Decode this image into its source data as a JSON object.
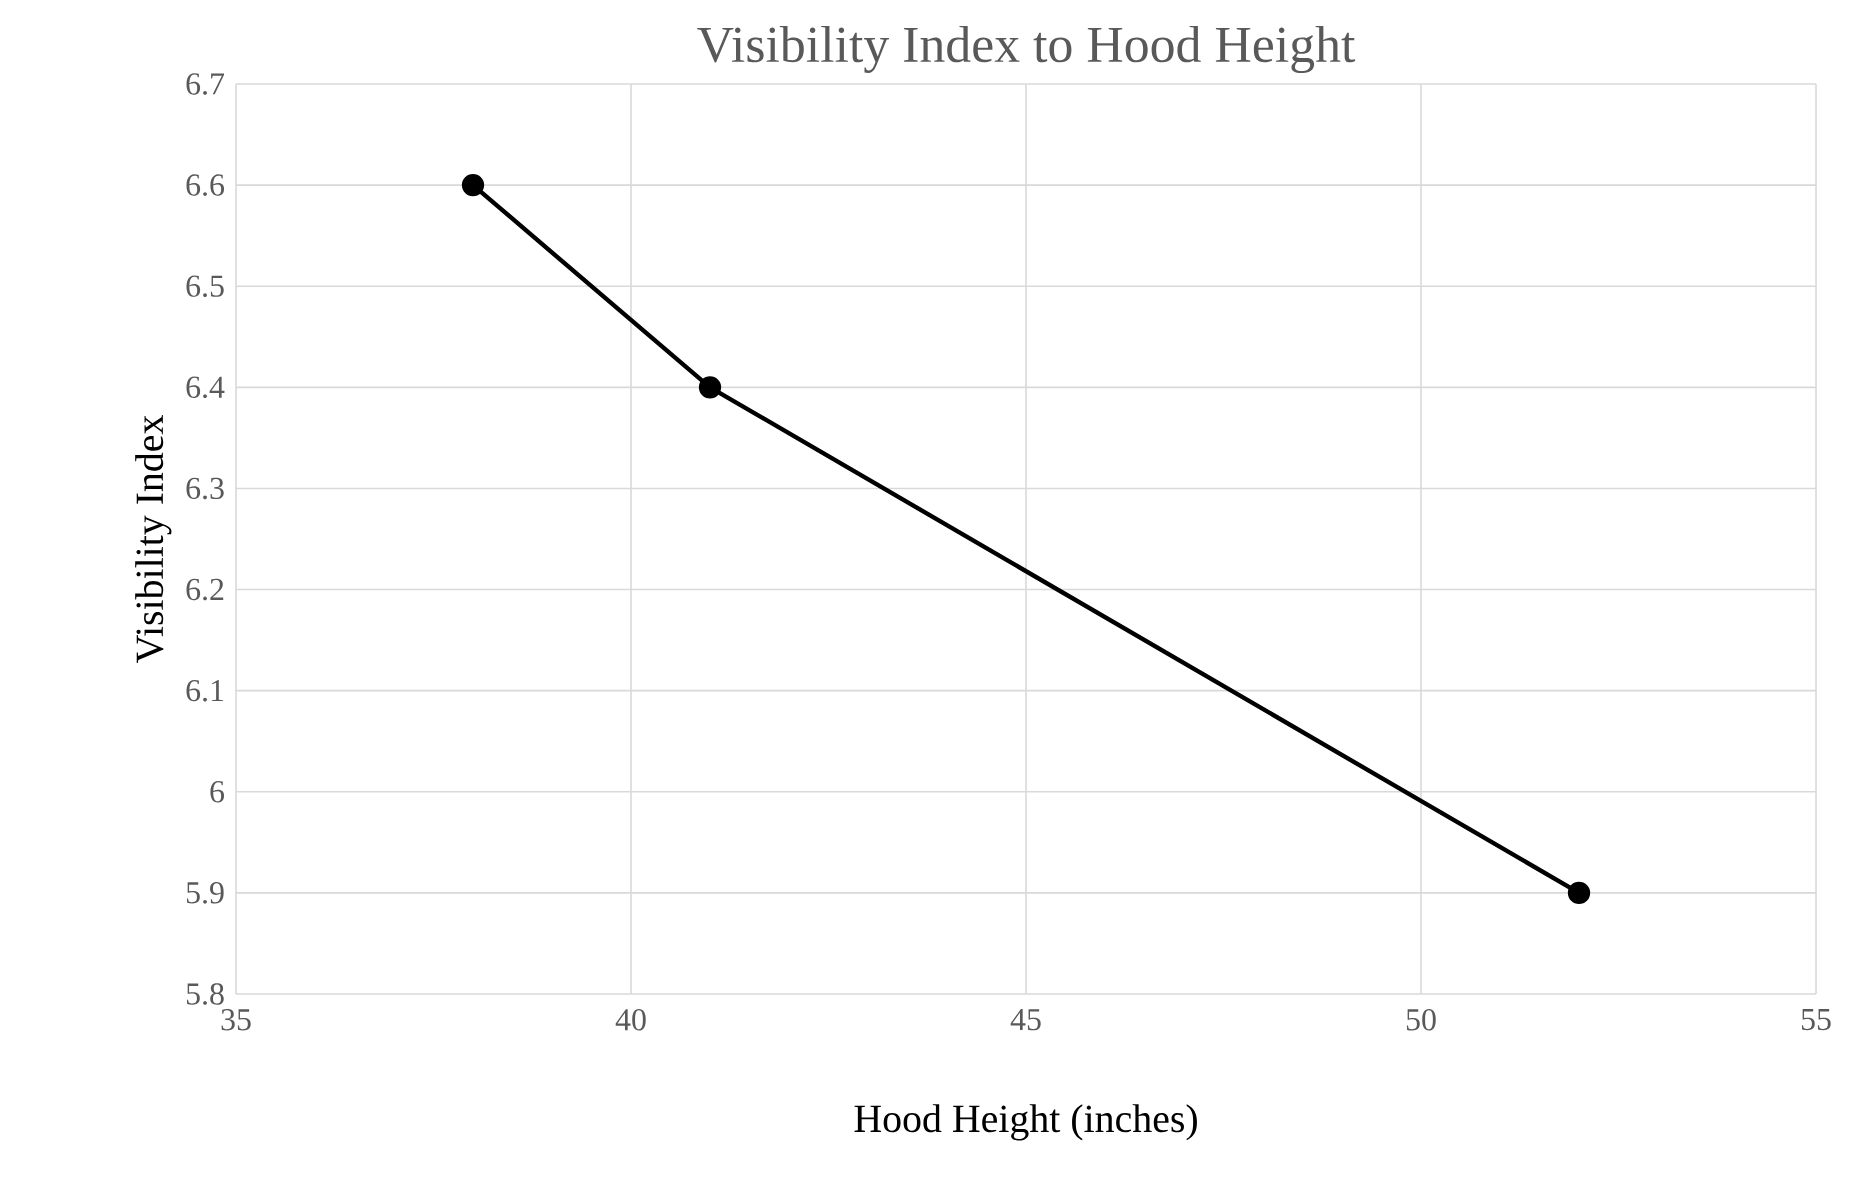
{
  "chart_data": {
    "type": "line",
    "title": "Visibility Index to Hood Height",
    "xlabel": "Hood Height (inches)",
    "ylabel": "Visibility Index",
    "x": [
      38,
      41,
      52
    ],
    "series": [
      {
        "color": "#000000",
        "values": [
          6.6,
          6.4,
          5.9
        ]
      }
    ],
    "xlim": [
      35,
      55
    ],
    "xticks": [
      35,
      40,
      45,
      50,
      55
    ],
    "ylim": [
      5.8,
      6.7
    ],
    "yticks": [
      5.8,
      5.9,
      6,
      6.1,
      6.2,
      6.3,
      6.4,
      6.5,
      6.6,
      6.7
    ],
    "grid": true,
    "marker": "circle",
    "line_style": "solid"
  }
}
